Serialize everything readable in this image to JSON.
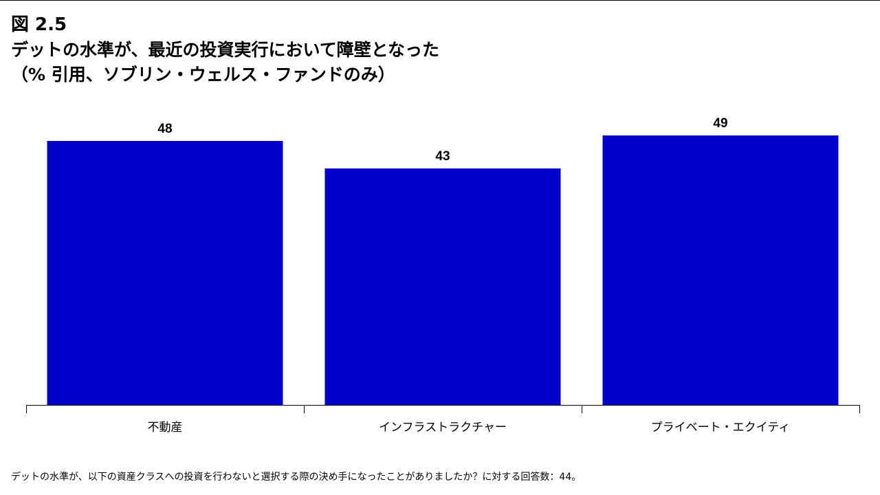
{
  "figure_label": "図 2.5",
  "title": "デットの水準が、最近の投資実行において障壁となった",
  "subtitle": "（% 引用、ソブリン・ウェルス・ファンドのみ）",
  "footnote": "デットの水準が、以下の資産クラスへの投資を行わないと選択する際の決め手になったことがありましたか？に対する回答数：44。",
  "colors": {
    "bar": "#0000CC",
    "axis": "#000000",
    "text": "#000000"
  },
  "chart_data": {
    "type": "bar",
    "title": "デットの水準が、最近の投資実行において障壁となった",
    "subtitle": "（% 引用、ソブリン・ウェルス・ファンドのみ）",
    "categories": [
      "不動産",
      "インフラストラクチャー",
      "プライベート・エクイティ"
    ],
    "values": [
      48,
      43,
      49
    ],
    "xlabel": "",
    "ylabel": "",
    "ylim": [
      0,
      49
    ],
    "grid": false,
    "legend": "none",
    "data_labels": true
  }
}
